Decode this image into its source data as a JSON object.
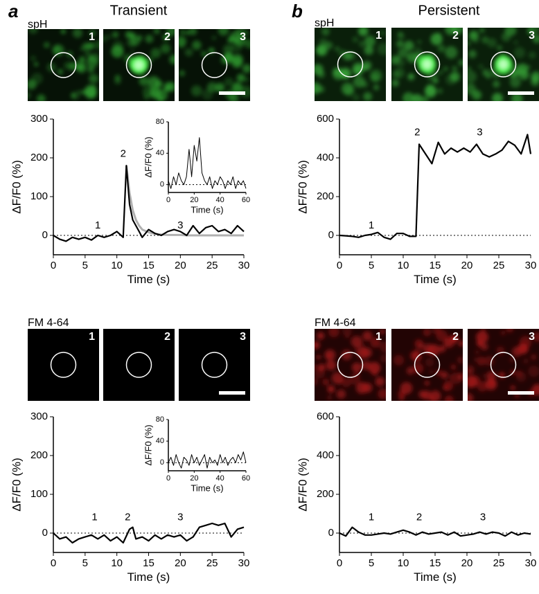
{
  "panels": [
    {
      "letter": "a",
      "title": "Transient",
      "rows": [
        {
          "label": "spH",
          "images": [
            "1",
            "2",
            "3"
          ]
        },
        {
          "label": "FM 4-64",
          "images": [
            "1",
            "2",
            "3"
          ]
        }
      ]
    },
    {
      "letter": "b",
      "title": "Persistent",
      "rows": [
        {
          "label": "spH",
          "images": [
            "1",
            "2",
            "3"
          ]
        },
        {
          "label": "FM 4-64",
          "images": [
            "1",
            "2",
            "3"
          ]
        }
      ]
    }
  ],
  "chart_data": [
    {
      "type": "line",
      "xlabel": "Time (s)",
      "ylabel": "ΔF/F0 (%)",
      "x": [
        0,
        1,
        2,
        3,
        4,
        5,
        6,
        7,
        8,
        9,
        10,
        11,
        11.5,
        12,
        12.5,
        13,
        13.5,
        14,
        15,
        16,
        17,
        18,
        19,
        20,
        21,
        22,
        23,
        24,
        25,
        26,
        27,
        28,
        29,
        30
      ],
      "series": [
        {
          "color": "#000000",
          "values": [
            0,
            -10,
            -15,
            -5,
            -10,
            -5,
            -12,
            0,
            -5,
            0,
            10,
            -5,
            180,
            80,
            40,
            25,
            10,
            -5,
            15,
            5,
            0,
            10,
            15,
            10,
            0,
            25,
            5,
            20,
            25,
            10,
            15,
            5,
            25,
            10
          ]
        },
        {
          "color": "#b0b0b0",
          "values": [
            null,
            null,
            null,
            null,
            null,
            null,
            null,
            null,
            null,
            null,
            null,
            null,
            180,
            110,
            65,
            40,
            25,
            15,
            8,
            4,
            2,
            1,
            1,
            1,
            0,
            0,
            0,
            0,
            0,
            0,
            0,
            0,
            0,
            0
          ]
        }
      ],
      "annotations": [
        "1",
        "2",
        "3"
      ],
      "xlim": [
        0,
        30
      ],
      "xticks": [
        0,
        5,
        10,
        15,
        20,
        25,
        30
      ],
      "ylim": [
        -50,
        300
      ],
      "yticks": [
        0,
        100,
        200,
        300
      ]
    },
    {
      "type": "line",
      "xlabel": "Time (s)",
      "ylabel": "ΔF/F0 (%)",
      "x": [
        0,
        2,
        4,
        6,
        8,
        10,
        12,
        14,
        16,
        18,
        20,
        22,
        24,
        26,
        28,
        30,
        32,
        34,
        36,
        38,
        40,
        42,
        44,
        46,
        48,
        50,
        52,
        54,
        56,
        58,
        60
      ],
      "series": [
        {
          "color": "#000000",
          "values": [
            5,
            -5,
            10,
            0,
            15,
            5,
            0,
            10,
            45,
            10,
            50,
            30,
            60,
            15,
            5,
            0,
            10,
            -5,
            5,
            0,
            10,
            5,
            -5,
            5,
            0,
            10,
            -5,
            5,
            0,
            5,
            -5
          ]
        }
      ],
      "annotations": [],
      "xlim": [
        0,
        60
      ],
      "xticks": [
        0,
        20,
        40,
        60
      ],
      "ylim": [
        -10,
        80
      ],
      "yticks": [
        0,
        40,
        80
      ]
    },
    {
      "type": "line",
      "xlabel": "Time (s)",
      "ylabel": "ΔF/F0 (%)",
      "x": [
        0,
        1,
        2,
        3,
        4,
        5,
        6,
        7,
        8,
        9,
        10,
        11,
        12,
        12.5,
        13.5,
        14.5,
        15.5,
        16.5,
        17.5,
        18.5,
        19.5,
        20.5,
        21.5,
        22.5,
        23.5,
        24.5,
        25.5,
        26.5,
        27.5,
        28.5,
        29.5,
        30
      ],
      "series": [
        {
          "color": "#000000",
          "values": [
            0,
            -2,
            -5,
            -10,
            0,
            5,
            15,
            -10,
            -20,
            10,
            10,
            -5,
            -5,
            470,
            420,
            370,
            480,
            420,
            450,
            430,
            450,
            430,
            470,
            420,
            405,
            420,
            440,
            485,
            465,
            420,
            520,
            420
          ]
        }
      ],
      "annotations": [
        "1",
        "2",
        "3"
      ],
      "xlim": [
        0,
        30
      ],
      "xticks": [
        0,
        5,
        10,
        15,
        20,
        25,
        30
      ],
      "ylim": [
        -100,
        600
      ],
      "yticks": [
        0,
        200,
        400,
        600
      ]
    },
    {
      "type": "line",
      "xlabel": "Time (s)",
      "ylabel": "ΔF/F0 (%)",
      "x": [
        0,
        1,
        2,
        3,
        4,
        5,
        6,
        7,
        8,
        9,
        10,
        11,
        12,
        12.5,
        13,
        14,
        15,
        16,
        17,
        18,
        19,
        20,
        21,
        22,
        23,
        24,
        25,
        26,
        27,
        28,
        29,
        30
      ],
      "series": [
        {
          "color": "#000000",
          "values": [
            0,
            -15,
            -10,
            -25,
            -15,
            -10,
            -5,
            -15,
            -5,
            -20,
            -10,
            -25,
            10,
            15,
            -15,
            -10,
            -20,
            -5,
            -15,
            -5,
            -10,
            -5,
            -20,
            -10,
            15,
            20,
            25,
            20,
            25,
            -10,
            10,
            15
          ]
        }
      ],
      "annotations": [
        "1",
        "2",
        "3"
      ],
      "xlim": [
        0,
        30
      ],
      "xticks": [
        0,
        5,
        10,
        15,
        20,
        25,
        30
      ],
      "ylim": [
        -50,
        300
      ],
      "yticks": [
        0,
        100,
        200,
        300
      ]
    },
    {
      "type": "line",
      "xlabel": "Time (s)",
      "ylabel": "ΔF/F0 (%)",
      "x": [
        0,
        2,
        4,
        6,
        8,
        10,
        12,
        14,
        16,
        18,
        20,
        22,
        24,
        26,
        28,
        30,
        32,
        34,
        36,
        38,
        40,
        42,
        44,
        46,
        48,
        50,
        52,
        54,
        56,
        58,
        60
      ],
      "series": [
        {
          "color": "#000000",
          "values": [
            0,
            10,
            -5,
            15,
            0,
            -10,
            10,
            5,
            -5,
            15,
            0,
            10,
            -5,
            5,
            15,
            -10,
            10,
            0,
            5,
            -5,
            15,
            0,
            10,
            -5,
            5,
            10,
            0,
            15,
            5,
            20,
            0
          ]
        }
      ],
      "annotations": [],
      "xlim": [
        0,
        60
      ],
      "xticks": [
        0,
        20,
        40,
        60
      ],
      "ylim": [
        -15,
        80
      ],
      "yticks": [
        0,
        40,
        80
      ]
    },
    {
      "type": "line",
      "xlabel": "Time (s)",
      "ylabel": "ΔF/F0 (%)",
      "x": [
        0,
        1,
        2,
        3,
        4,
        5,
        6,
        7,
        8,
        9,
        10,
        11,
        12,
        13,
        14,
        15,
        16,
        17,
        18,
        19,
        20,
        21,
        22,
        23,
        24,
        25,
        26,
        27,
        28,
        29,
        30
      ],
      "series": [
        {
          "color": "#000000",
          "values": [
            0,
            -15,
            30,
            5,
            -10,
            -10,
            -5,
            0,
            -5,
            5,
            15,
            5,
            -10,
            5,
            -5,
            0,
            5,
            -10,
            5,
            -15,
            -10,
            -5,
            5,
            -5,
            5,
            0,
            -15,
            5,
            -10,
            0,
            -5
          ]
        }
      ],
      "annotations": [
        "1",
        "2",
        "3"
      ],
      "xlim": [
        0,
        30
      ],
      "xticks": [
        0,
        5,
        10,
        15,
        20,
        25,
        30
      ],
      "ylim": [
        -100,
        600
      ],
      "yticks": [
        0,
        200,
        400,
        600
      ]
    }
  ]
}
